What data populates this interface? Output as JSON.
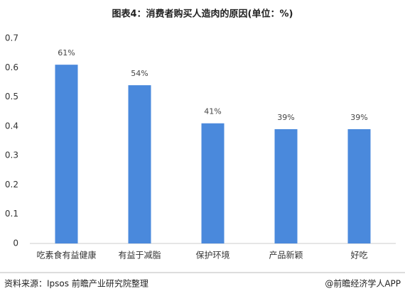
{
  "chart_data": {
    "type": "bar",
    "title": "图表4：消费者购买人造肉的原因(单位：%)",
    "categories": [
      "吃素食有益健康",
      "有益于减脂",
      "保护环境",
      "产品新颖",
      "好吃"
    ],
    "values": [
      0.61,
      0.54,
      0.41,
      0.39,
      0.39
    ],
    "value_labels": [
      "61%",
      "54%",
      "41%",
      "39%",
      "39%"
    ],
    "color": "#4a89dc",
    "ylim": [
      0,
      0.7
    ],
    "yticks": [
      0,
      0.1,
      0.2,
      0.3,
      0.4,
      0.5,
      0.6,
      0.7
    ],
    "grid": false,
    "source": "资料来源：Ipsos 前瞻产业研究院整理",
    "credit": "@前瞻经济学人APP"
  }
}
